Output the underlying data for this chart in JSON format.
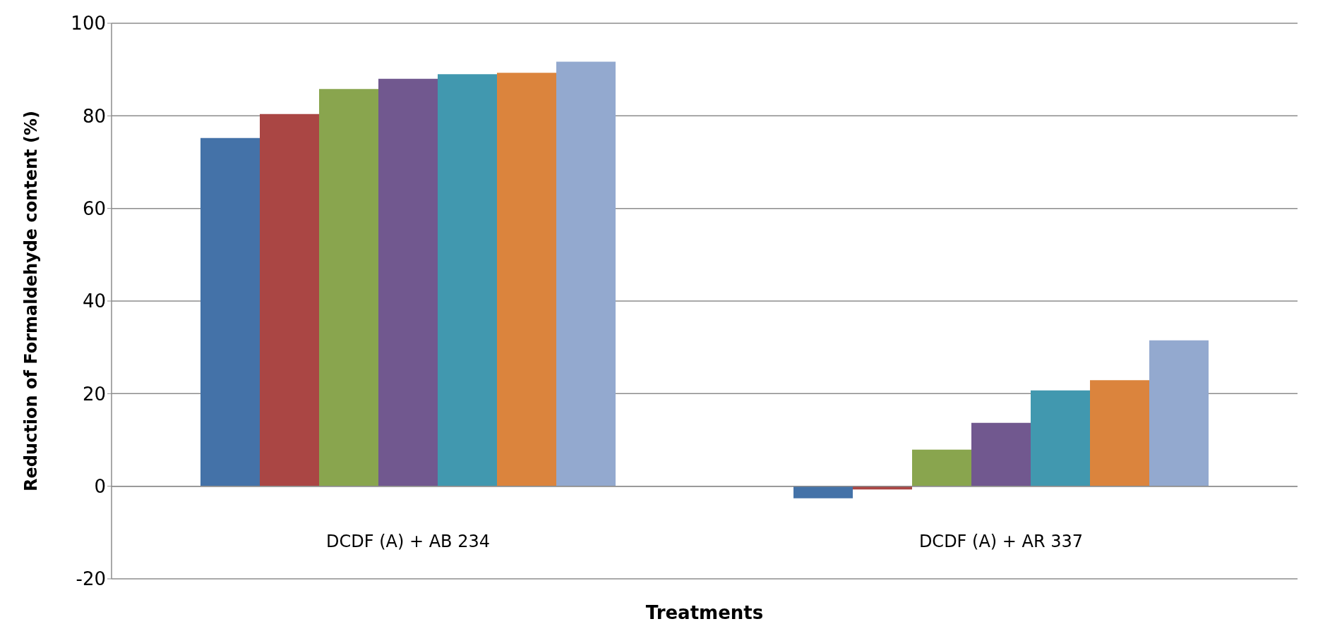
{
  "chart_data": {
    "type": "bar",
    "xlabel": "Treatments",
    "ylabel": "Reduction of Formaldehyde content (%)",
    "categories": [
      "DCDF (A) + AB 234",
      "DCDF (A) + AR 337"
    ],
    "series": [
      {
        "color": "#4472a8",
        "values": [
          75.2,
          -2.6
        ]
      },
      {
        "color": "#aa4644",
        "values": [
          80.4,
          -0.7
        ]
      },
      {
        "color": "#89a54e",
        "values": [
          85.8,
          7.9
        ]
      },
      {
        "color": "#71588f",
        "values": [
          88.0,
          13.7
        ]
      },
      {
        "color": "#4198af",
        "values": [
          89.0,
          20.7
        ]
      },
      {
        "color": "#db843d",
        "values": [
          89.3,
          22.9
        ]
      },
      {
        "color": "#93a9cf",
        "values": [
          91.7,
          31.5
        ]
      }
    ],
    "ylim": [
      -20,
      100
    ],
    "yticks": [
      -20,
      0,
      20,
      40,
      60,
      80,
      100
    ],
    "grid": "y",
    "legend": false
  }
}
